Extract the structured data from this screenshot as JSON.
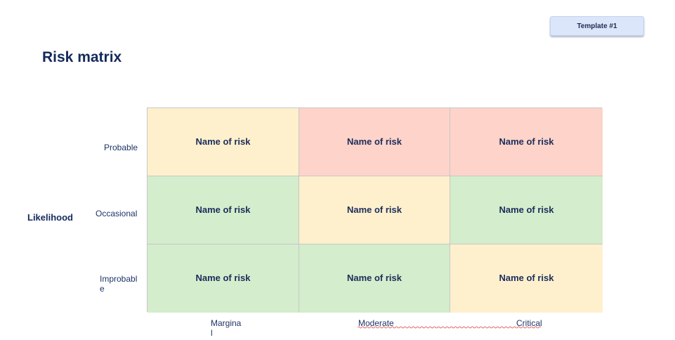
{
  "template_badge": "Template #1",
  "title": "Risk matrix",
  "axis": {
    "likelihood_label": "Likelihood"
  },
  "rows": [
    {
      "label": "Probable"
    },
    {
      "label": "Occasional"
    },
    {
      "label": "Improbable"
    }
  ],
  "columns": [
    {
      "label": "Marginal"
    },
    {
      "label": "Moderate"
    },
    {
      "label": "Critical"
    }
  ],
  "cells": [
    [
      {
        "text": "Name of risk",
        "color": "#fff0cd"
      },
      {
        "text": "Name of risk",
        "color": "#fed3ca"
      },
      {
        "text": "Name of risk",
        "color": "#fed3ca"
      }
    ],
    [
      {
        "text": "Name of risk",
        "color": "#d4edcc"
      },
      {
        "text": "Name of risk",
        "color": "#fff0cd"
      },
      {
        "text": "Name of risk",
        "color": "#d4edcc"
      }
    ],
    [
      {
        "text": "Name of risk",
        "color": "#d4edcc"
      },
      {
        "text": "Name of risk",
        "color": "#d4edcc"
      },
      {
        "text": "Name of risk",
        "color": "#fff0cd"
      }
    ]
  ]
}
